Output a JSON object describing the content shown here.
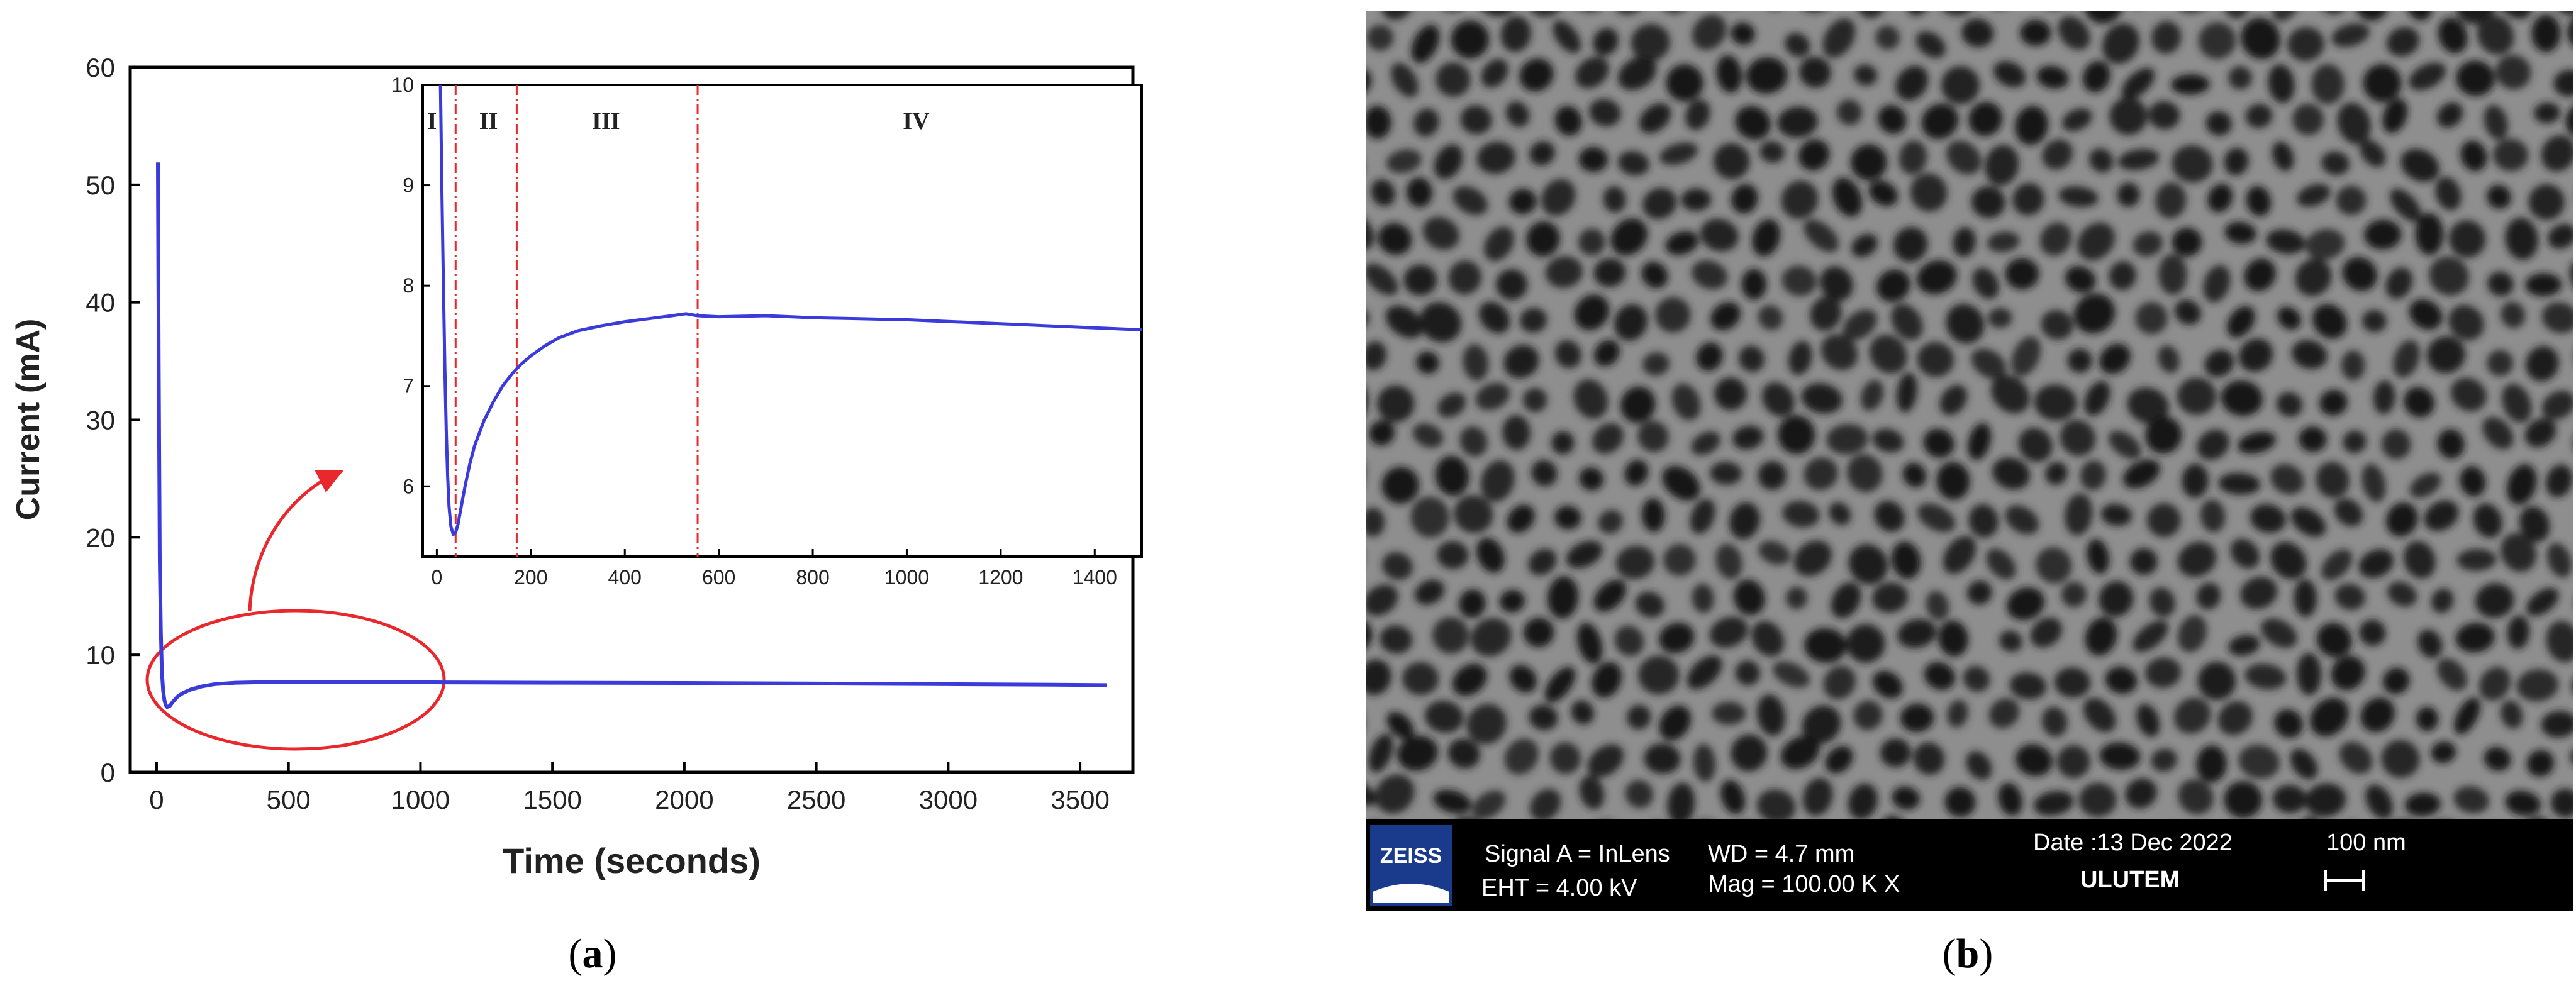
{
  "chart_data": [
    {
      "type": "line",
      "panel_label": "a",
      "xlabel": "Time (seconds)",
      "ylabel": "Current (mA)",
      "xlim": [
        -100,
        3700
      ],
      "ylim": [
        0,
        60
      ],
      "xticks": [
        0,
        500,
        1000,
        1500,
        2000,
        2500,
        3000,
        3500
      ],
      "yticks": [
        0,
        10,
        20,
        30,
        40,
        50,
        60
      ],
      "grid": false,
      "legend": "none",
      "line_color": "#3b3bdc",
      "highlight_color": "#e8282d",
      "series": [
        {
          "x": [
            5,
            8,
            12,
            16,
            20,
            25,
            30,
            35,
            40,
            50,
            60,
            80,
            100,
            130,
            170,
            220,
            300,
            400,
            500,
            560,
            700,
            900,
            1100,
            1300,
            1500,
            2000,
            2500,
            3000,
            3400,
            3600
          ],
          "values": [
            51.9,
            35,
            18,
            12,
            8.6,
            6.9,
            6.1,
            5.7,
            5.55,
            5.65,
            5.95,
            6.45,
            6.75,
            7.05,
            7.3,
            7.5,
            7.62,
            7.67,
            7.7,
            7.68,
            7.68,
            7.67,
            7.65,
            7.63,
            7.62,
            7.6,
            7.55,
            7.5,
            7.45,
            7.42
          ]
        }
      ],
      "inset": {
        "xlim": [
          -30,
          1500
        ],
        "ylim": [
          5.3,
          10
        ],
        "xticks": [
          0,
          200,
          400,
          600,
          800,
          1000,
          1200,
          1400
        ],
        "yticks": [
          6,
          7,
          8,
          9,
          10
        ],
        "region_boundaries": [
          40,
          170,
          555
        ],
        "regions": [
          {
            "label": "I",
            "x": -10
          },
          {
            "label": "II",
            "x": 110
          },
          {
            "label": "III",
            "x": 360
          },
          {
            "label": "IV",
            "x": 1020
          }
        ],
        "x": [
          5,
          8,
          11,
          14,
          17,
          20,
          23,
          26,
          30,
          35,
          40,
          45,
          50,
          60,
          70,
          80,
          100,
          120,
          140,
          160,
          180,
          200,
          230,
          260,
          300,
          350,
          400,
          450,
          500,
          530,
          555,
          600,
          700,
          800,
          900,
          1000,
          1100,
          1200,
          1300,
          1400,
          1500
        ],
        "values": [
          11,
          9.9,
          8.9,
          8.0,
          7.2,
          6.55,
          6.1,
          5.8,
          5.6,
          5.52,
          5.54,
          5.62,
          5.75,
          6.0,
          6.22,
          6.4,
          6.65,
          6.84,
          7.0,
          7.12,
          7.22,
          7.3,
          7.4,
          7.48,
          7.55,
          7.6,
          7.64,
          7.67,
          7.7,
          7.72,
          7.7,
          7.69,
          7.7,
          7.68,
          7.67,
          7.66,
          7.64,
          7.62,
          7.6,
          7.58,
          7.56
        ]
      }
    }
  ],
  "sem_image": {
    "panel_label": "b",
    "logo_text": "ZEISS",
    "signal": "Signal A = InLens",
    "eht": "EHT =  4.00 kV",
    "wd": "WD =  4.7 mm",
    "mag": "Mag =  100.00 K X",
    "date": "Date :13 Dec 2022",
    "lab": "ULUTEM",
    "scale": "100 nm"
  }
}
